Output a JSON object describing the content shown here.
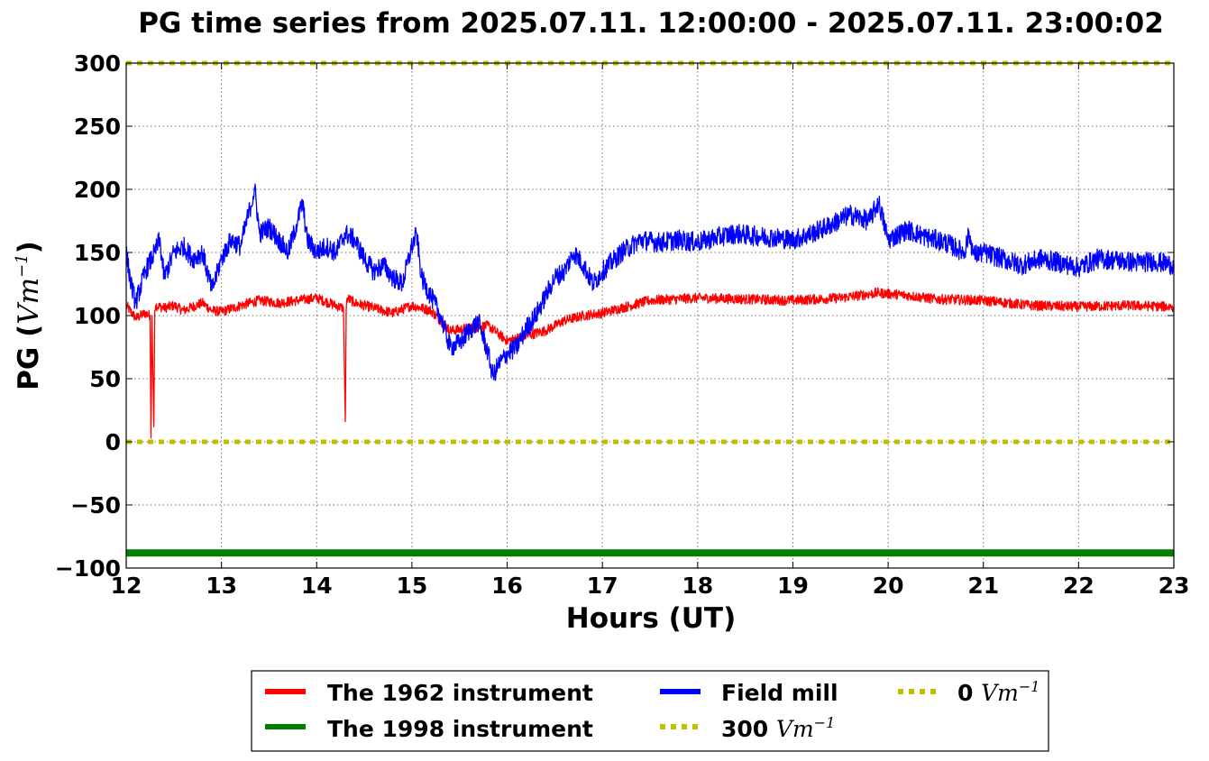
{
  "chart_data": {
    "type": "line",
    "title": "PG time series from 2025.07.11. 12:00:00 - 2025.07.11. 23:00:02",
    "xlabel": "Hours (UT)",
    "ylabel_prefix": "PG (",
    "ylabel_unit": "Vm",
    "ylabel_exp": "−1",
    "ylabel_suffix": ")",
    "xlim": [
      12,
      23
    ],
    "ylim": [
      -100,
      300
    ],
    "xticks": [
      12,
      13,
      14,
      15,
      16,
      17,
      18,
      19,
      20,
      21,
      22,
      23
    ],
    "yticks": [
      -100,
      -50,
      0,
      50,
      100,
      150,
      200,
      250,
      300
    ],
    "ytick_labels": [
      "−100",
      "−50",
      "0",
      "50",
      "100",
      "150",
      "200",
      "250",
      "300"
    ],
    "grid": true,
    "legend_placement": "below",
    "series": [
      {
        "name": "The 1962 instrument",
        "color": "#ff0000",
        "style": "solid",
        "x": [
          12.0,
          12.1,
          12.2,
          12.25,
          12.26,
          12.27,
          12.29,
          12.3,
          12.31,
          12.4,
          12.5,
          12.6,
          12.8,
          12.9,
          13.0,
          13.2,
          13.4,
          13.6,
          13.8,
          14.0,
          14.2,
          14.28,
          14.3,
          14.31,
          14.32,
          14.4,
          14.6,
          14.8,
          15.0,
          15.2,
          15.4,
          15.6,
          15.8,
          16.0,
          16.2,
          16.4,
          16.6,
          16.8,
          17.0,
          17.2,
          17.5,
          18.0,
          18.5,
          19.0,
          19.5,
          19.9,
          20.2,
          20.5,
          21.0,
          21.5,
          22.0,
          22.5,
          23.0
        ],
        "values": [
          108,
          98,
          102,
          100,
          3,
          100,
          12,
          104,
          108,
          106,
          108,
          104,
          110,
          104,
          103,
          108,
          112,
          110,
          112,
          114,
          108,
          106,
          16,
          104,
          114,
          110,
          106,
          102,
          108,
          104,
          88,
          90,
          92,
          80,
          84,
          88,
          96,
          100,
          102,
          106,
          112,
          114,
          113,
          112,
          114,
          118,
          116,
          113,
          112,
          108,
          107,
          108,
          107
        ]
      },
      {
        "name": "The 1998 instrument",
        "color": "#008000",
        "style": "thick",
        "x": [
          12.0,
          23.0
        ],
        "values": [
          -88,
          -88
        ]
      },
      {
        "name": "Field mill",
        "color": "#0000ff",
        "style": "solid",
        "x": [
          12.0,
          12.05,
          12.1,
          12.2,
          12.3,
          12.35,
          12.4,
          12.5,
          12.6,
          12.7,
          12.8,
          12.9,
          13.0,
          13.1,
          13.2,
          13.3,
          13.35,
          13.4,
          13.5,
          13.6,
          13.7,
          13.8,
          13.85,
          13.9,
          14.0,
          14.1,
          14.2,
          14.3,
          14.4,
          14.5,
          14.6,
          14.7,
          14.8,
          14.9,
          15.0,
          15.05,
          15.1,
          15.2,
          15.3,
          15.4,
          15.5,
          15.6,
          15.7,
          15.8,
          15.85,
          15.9,
          16.0,
          16.1,
          16.2,
          16.3,
          16.4,
          16.5,
          16.6,
          16.7,
          16.8,
          16.9,
          17.0,
          17.2,
          17.4,
          17.6,
          17.8,
          18.0,
          18.2,
          18.4,
          18.6,
          18.8,
          19.0,
          19.2,
          19.4,
          19.6,
          19.8,
          19.9,
          20.0,
          20.2,
          20.4,
          20.6,
          20.8,
          20.85,
          20.9,
          21.0,
          21.2,
          21.4,
          21.6,
          21.8,
          22.0,
          22.2,
          22.4,
          22.6,
          22.8,
          23.0
        ],
        "values": [
          150,
          125,
          110,
          135,
          150,
          160,
          130,
          150,
          155,
          145,
          150,
          120,
          145,
          160,
          155,
          185,
          200,
          165,
          170,
          160,
          150,
          175,
          190,
          160,
          150,
          155,
          150,
          165,
          160,
          145,
          135,
          140,
          130,
          125,
          155,
          165,
          130,
          115,
          100,
          75,
          78,
          88,
          95,
          70,
          52,
          60,
          70,
          75,
          90,
          100,
          115,
          130,
          135,
          150,
          140,
          125,
          135,
          150,
          160,
          158,
          160,
          158,
          162,
          165,
          163,
          162,
          160,
          165,
          172,
          180,
          175,
          190,
          160,
          168,
          162,
          158,
          150,
          165,
          148,
          150,
          145,
          140,
          145,
          142,
          138,
          145,
          144,
          142,
          143,
          140
        ]
      }
    ],
    "reference_lines": [
      {
        "name": "300",
        "unit": "Vm",
        "exp": "−1",
        "value": 300,
        "color": "#bfbf00",
        "style": "dotted"
      },
      {
        "name": "0",
        "unit": "Vm",
        "exp": "−1",
        "value": 0,
        "color": "#bfbf00",
        "style": "dotted"
      }
    ]
  }
}
